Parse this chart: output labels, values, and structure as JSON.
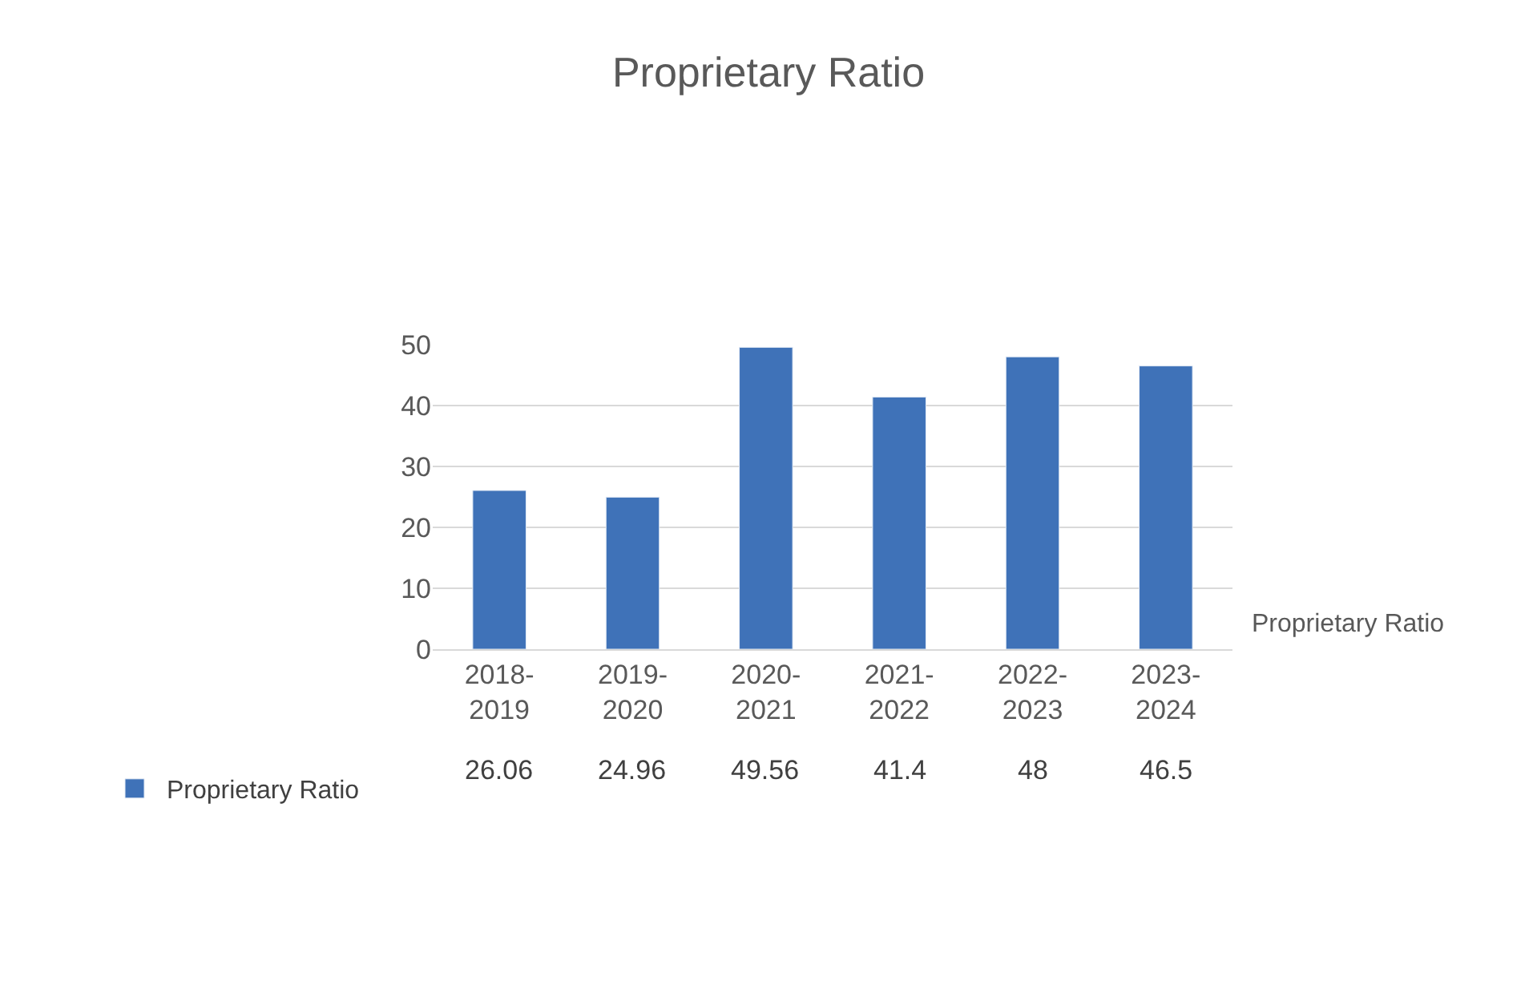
{
  "chart_data": {
    "type": "bar",
    "title": "Proprietary Ratio",
    "categories": [
      "2018-2019",
      "2019-2020",
      "2020-2021",
      "2021-2022",
      "2022-2023",
      "2023-2024"
    ],
    "series": [
      {
        "name": "Proprietary Ratio",
        "color": "#3f72b8",
        "values": [
          26.06,
          24.96,
          49.56,
          41.4,
          48,
          46.5
        ]
      }
    ],
    "ylim": [
      0,
      50
    ],
    "yticks": [
      0,
      10,
      20,
      30,
      40,
      50
    ],
    "grid": "y",
    "legend": "bottom",
    "data_labels": true
  }
}
